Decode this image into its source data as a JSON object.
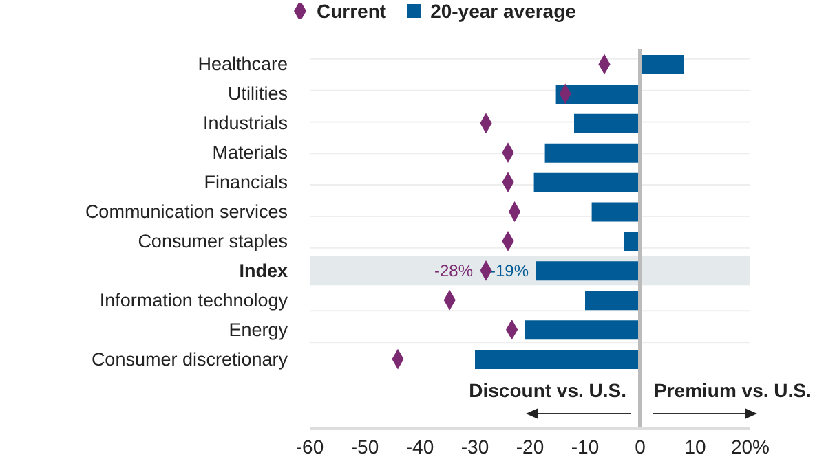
{
  "chart_data": {
    "type": "bar",
    "orientation": "horizontal",
    "categories": [
      "Healthcare",
      "Utilities",
      "Industrials",
      "Materials",
      "Financials",
      "Communication services",
      "Consumer staples",
      "Index",
      "Information technology",
      "Energy",
      "Consumer discretionary"
    ],
    "series": [
      {
        "name": "Current",
        "type": "scatter",
        "marker": "diamond",
        "color": "#7b2a72",
        "values": [
          -6.5,
          -13.6,
          -28,
          -24,
          -24,
          -22.8,
          -24,
          -28,
          -34.6,
          -23.3,
          -44
        ],
        "value_labels": [
          null,
          null,
          null,
          null,
          null,
          null,
          null,
          "-28%",
          null,
          null,
          null
        ]
      },
      {
        "name": "20-year average",
        "color": "#005b96",
        "values": [
          8,
          -15.3,
          -12,
          -17.3,
          -19.3,
          -8.8,
          -3,
          -19,
          -10,
          -21,
          -30
        ],
        "value_labels": [
          null,
          null,
          null,
          null,
          null,
          null,
          null,
          "-19%",
          null,
          null,
          null
        ]
      }
    ],
    "xlim": [
      -60,
      20
    ],
    "xticks": [
      -60,
      -50,
      -40,
      -30,
      -20,
      -10,
      0,
      10,
      {
        "value": 20,
        "label": "20%"
      }
    ],
    "grid": "y",
    "legend": "top left",
    "bands": [
      {
        "axis": "y",
        "from": "Index",
        "to": "Index",
        "color": "#e4e9ec"
      }
    ],
    "ref_lines": [
      {
        "axis": "x",
        "value": 0,
        "color": "#bbbbbb"
      }
    ],
    "annotations": [
      "Discount vs. U.S.",
      "Premium vs. U.S."
    ]
  }
}
